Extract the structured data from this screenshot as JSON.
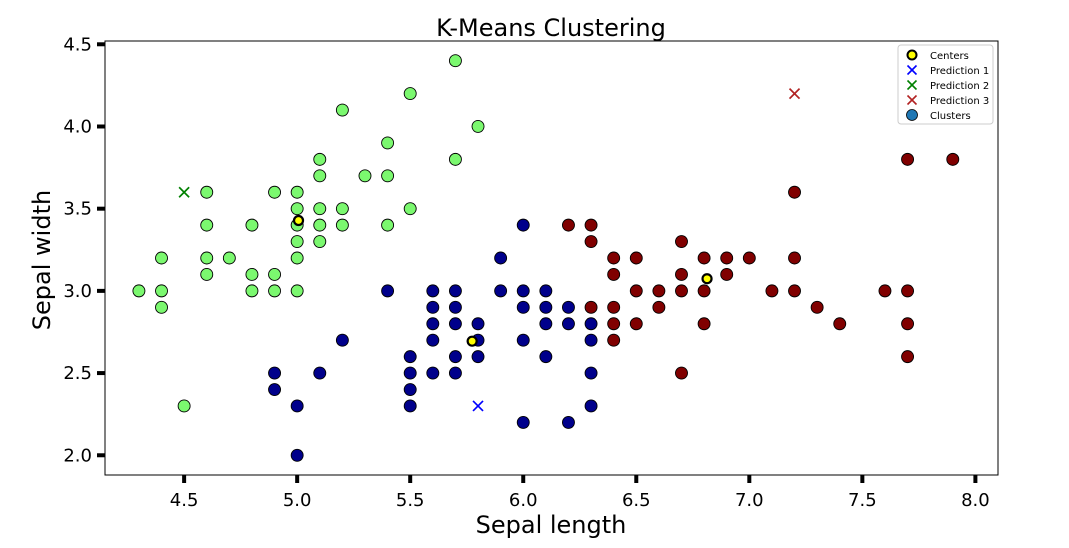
{
  "chart_data": {
    "type": "scatter",
    "title": "K-Means Clustering",
    "xlabel": "Sepal length",
    "ylabel": "Sepal width",
    "xlim": [
      4.15,
      8.1
    ],
    "ylim": [
      1.88,
      4.52
    ],
    "xticks": [
      4.5,
      5.0,
      5.5,
      6.0,
      6.5,
      7.0,
      7.5,
      8.0
    ],
    "yticks": [
      2.0,
      2.5,
      3.0,
      3.5,
      4.0,
      4.5
    ],
    "xtick_labels": [
      "4.5",
      "5.0",
      "5.5",
      "6.0",
      "6.5",
      "7.0",
      "7.5",
      "8.0"
    ],
    "ytick_labels": [
      "2.0",
      "2.5",
      "3.0",
      "3.5",
      "4.0",
      "4.5"
    ],
    "grid": false,
    "legend_position": "top-right",
    "legend": [
      "Centers",
      "Prediction 1",
      "Prediction 2",
      "Prediction 3",
      "Clusters"
    ],
    "colors": {
      "cluster_green": "#7bf86f",
      "cluster_blue": "#00008b",
      "cluster_red": "#800000",
      "centers": "#ffff00",
      "prediction_1": "#0000ff",
      "prediction_2": "#008000",
      "prediction_3": "#b22222",
      "clusters_legend": "#1f77b4"
    },
    "clusters": [
      {
        "color": "#7bf86f",
        "points": [
          [
            4.3,
            3.0
          ],
          [
            4.4,
            3.2
          ],
          [
            4.4,
            3.0
          ],
          [
            4.4,
            2.9
          ],
          [
            4.5,
            2.3
          ],
          [
            4.6,
            3.6
          ],
          [
            4.6,
            3.4
          ],
          [
            4.6,
            3.2
          ],
          [
            4.6,
            3.1
          ],
          [
            4.7,
            3.2
          ],
          [
            4.8,
            3.4
          ],
          [
            4.8,
            3.1
          ],
          [
            4.8,
            3.0
          ],
          [
            4.9,
            3.6
          ],
          [
            4.9,
            3.1
          ],
          [
            4.9,
            3.0
          ],
          [
            5.0,
            3.6
          ],
          [
            5.0,
            3.5
          ],
          [
            5.0,
            3.4
          ],
          [
            5.0,
            3.3
          ],
          [
            5.0,
            3.2
          ],
          [
            5.0,
            3.0
          ],
          [
            5.1,
            3.8
          ],
          [
            5.1,
            3.7
          ],
          [
            5.1,
            3.5
          ],
          [
            5.1,
            3.4
          ],
          [
            5.1,
            3.3
          ],
          [
            5.2,
            4.1
          ],
          [
            5.2,
            3.5
          ],
          [
            5.2,
            3.4
          ],
          [
            5.3,
            3.7
          ],
          [
            5.4,
            3.9
          ],
          [
            5.4,
            3.7
          ],
          [
            5.4,
            3.4
          ],
          [
            5.5,
            4.2
          ],
          [
            5.5,
            3.5
          ],
          [
            5.7,
            4.4
          ],
          [
            5.7,
            3.8
          ],
          [
            5.8,
            4.0
          ]
        ]
      },
      {
        "color": "#00008b",
        "points": [
          [
            4.9,
            2.5
          ],
          [
            4.9,
            2.4
          ],
          [
            5.0,
            2.3
          ],
          [
            5.0,
            2.0
          ],
          [
            5.1,
            2.5
          ],
          [
            5.2,
            2.7
          ],
          [
            5.4,
            3.0
          ],
          [
            5.5,
            2.6
          ],
          [
            5.5,
            2.5
          ],
          [
            5.5,
            2.4
          ],
          [
            5.5,
            2.3
          ],
          [
            5.6,
            3.0
          ],
          [
            5.6,
            2.9
          ],
          [
            5.6,
            2.8
          ],
          [
            5.6,
            2.7
          ],
          [
            5.6,
            2.5
          ],
          [
            5.7,
            3.0
          ],
          [
            5.7,
            2.9
          ],
          [
            5.7,
            2.8
          ],
          [
            5.7,
            2.6
          ],
          [
            5.7,
            2.5
          ],
          [
            5.8,
            2.8
          ],
          [
            5.8,
            2.7
          ],
          [
            5.8,
            2.6
          ],
          [
            5.9,
            3.2
          ],
          [
            5.9,
            3.0
          ],
          [
            6.0,
            3.4
          ],
          [
            6.0,
            3.0
          ],
          [
            6.0,
            2.9
          ],
          [
            6.0,
            2.7
          ],
          [
            6.0,
            2.2
          ],
          [
            6.1,
            3.0
          ],
          [
            6.1,
            2.9
          ],
          [
            6.1,
            2.8
          ],
          [
            6.1,
            2.6
          ],
          [
            6.2,
            2.9
          ],
          [
            6.2,
            2.8
          ],
          [
            6.2,
            2.2
          ],
          [
            6.3,
            2.8
          ],
          [
            6.3,
            2.7
          ],
          [
            6.3,
            2.5
          ],
          [
            6.3,
            2.3
          ]
        ]
      },
      {
        "color": "#800000",
        "points": [
          [
            6.2,
            3.4
          ],
          [
            6.3,
            3.4
          ],
          [
            6.3,
            3.3
          ],
          [
            6.3,
            2.9
          ],
          [
            6.4,
            3.2
          ],
          [
            6.4,
            3.1
          ],
          [
            6.4,
            2.9
          ],
          [
            6.4,
            2.8
          ],
          [
            6.4,
            2.7
          ],
          [
            6.5,
            3.2
          ],
          [
            6.5,
            3.0
          ],
          [
            6.5,
            2.8
          ],
          [
            6.6,
            3.0
          ],
          [
            6.6,
            2.9
          ],
          [
            6.7,
            3.3
          ],
          [
            6.7,
            3.1
          ],
          [
            6.7,
            3.0
          ],
          [
            6.7,
            2.5
          ],
          [
            6.8,
            3.2
          ],
          [
            6.8,
            3.0
          ],
          [
            6.8,
            2.8
          ],
          [
            6.9,
            3.2
          ],
          [
            6.9,
            3.1
          ],
          [
            7.0,
            3.2
          ],
          [
            7.1,
            3.0
          ],
          [
            7.2,
            3.6
          ],
          [
            7.2,
            3.2
          ],
          [
            7.2,
            3.0
          ],
          [
            7.3,
            2.9
          ],
          [
            7.4,
            2.8
          ],
          [
            7.6,
            3.0
          ],
          [
            7.7,
            3.8
          ],
          [
            7.7,
            3.0
          ],
          [
            7.7,
            2.8
          ],
          [
            7.7,
            2.6
          ],
          [
            7.9,
            3.8
          ]
        ]
      }
    ],
    "centers": [
      [
        5.006,
        3.428
      ],
      [
        5.774,
        2.694
      ],
      [
        6.813,
        3.074
      ]
    ],
    "predictions": [
      {
        "name": "Prediction 1",
        "x": 5.8,
        "y": 2.3,
        "color": "#0000ff"
      },
      {
        "name": "Prediction 2",
        "x": 4.5,
        "y": 3.6,
        "color": "#008000"
      },
      {
        "name": "Prediction 3",
        "x": 7.2,
        "y": 4.2,
        "color": "#b22222"
      }
    ]
  }
}
